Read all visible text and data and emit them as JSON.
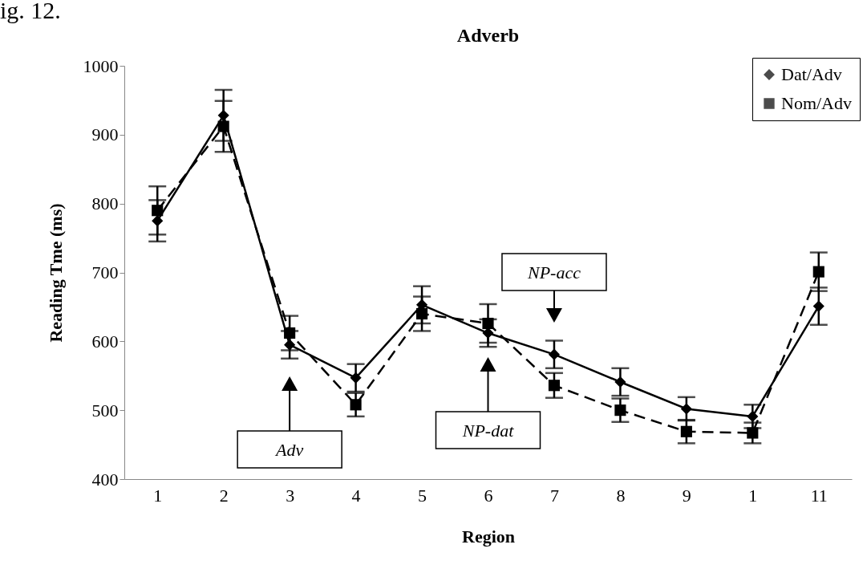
{
  "chart_data": {
    "type": "line",
    "title": "Adverb",
    "xlabel": "Region",
    "ylabel": "Reading Tme (ms)",
    "categories": [
      "1",
      "2",
      "3",
      "4",
      "5",
      "6",
      "7",
      "8",
      "9",
      "1",
      "11"
    ],
    "series": [
      {
        "name": "Dat/Adv",
        "color": "#000000",
        "marker": "diamond",
        "line_style": "solid",
        "values": [
          775,
          928,
          595,
          547,
          653,
          612,
          581,
          541,
          502,
          491,
          651
        ],
        "errors": [
          30,
          37,
          20,
          20,
          27,
          20,
          20,
          20,
          17,
          17,
          27
        ]
      },
      {
        "name": "Nom/Adv",
        "color": "#000000",
        "marker": "square",
        "line_style": "dashed",
        "values": [
          790,
          912,
          612,
          508,
          640,
          626,
          536,
          500,
          469,
          467,
          701
        ],
        "errors": [
          35,
          37,
          25,
          17,
          25,
          28,
          18,
          17,
          17,
          15,
          28
        ]
      }
    ],
    "ylim": [
      400,
      1000
    ],
    "yticks": [
      400,
      500,
      600,
      700,
      800,
      900,
      {
        "value": 1000,
        "label": "1000"
      }
    ],
    "grid": false,
    "legend": "top right",
    "annotations": [
      "ig. 12.",
      "Adv",
      "NP-dat",
      "NP-acc"
    ]
  }
}
